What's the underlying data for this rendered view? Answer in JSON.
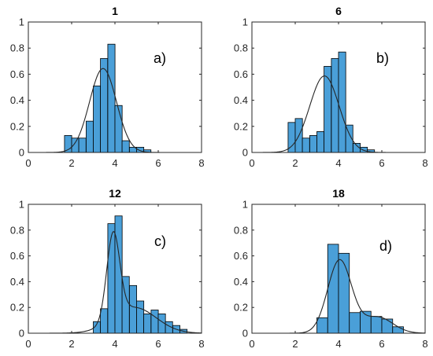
{
  "chart_data": [
    {
      "type": "bar",
      "title": "1",
      "annotation": "a)",
      "bin_width": 0.3333,
      "bin_starts": [
        1.67,
        2.0,
        2.33,
        2.67,
        3.0,
        3.33,
        3.67,
        4.0,
        4.33,
        4.67,
        5.0,
        5.33
      ],
      "values": [
        0.13,
        0.11,
        0.11,
        0.24,
        0.51,
        0.72,
        0.83,
        0.36,
        0.09,
        0.04,
        0.04,
        0.02
      ],
      "fit": {
        "type": "normal-sum",
        "components": [
          {
            "w": 1.0,
            "mu": 3.45,
            "sigma": 0.62
          }
        ]
      },
      "xlim": [
        0,
        8
      ],
      "ylim": [
        0,
        1
      ],
      "xticks": [
        "0",
        "2",
        "4",
        "6",
        "8"
      ],
      "yticks": [
        "0",
        "0.2",
        "0.4",
        "0.6",
        "0.8",
        "1"
      ],
      "bar_color": "#4a9fd8"
    },
    {
      "type": "bar",
      "title": "6",
      "annotation": "b)",
      "bin_width": 0.3333,
      "bin_starts": [
        1.67,
        2.0,
        2.33,
        2.67,
        3.0,
        3.33,
        3.67,
        4.0,
        4.33,
        4.67,
        5.0,
        5.33
      ],
      "values": [
        0.23,
        0.26,
        0.11,
        0.13,
        0.16,
        0.66,
        0.72,
        0.77,
        0.21,
        0.07,
        0.04,
        0.02
      ],
      "fit": {
        "type": "normal-sum",
        "components": [
          {
            "w": 1.0,
            "mu": 3.35,
            "sigma": 0.68
          }
        ]
      },
      "xlim": [
        0,
        8
      ],
      "ylim": [
        0,
        1
      ],
      "xticks": [
        "0",
        "2",
        "4",
        "6",
        "8"
      ],
      "yticks": [
        "0",
        "0.2",
        "0.4",
        "0.6",
        "0.8",
        "1"
      ],
      "bar_color": "#4a9fd8"
    },
    {
      "type": "bar",
      "title": "12",
      "annotation": "c)",
      "bin_width": 0.3333,
      "bin_starts": [
        3.0,
        3.33,
        3.67,
        4.0,
        4.33,
        4.67,
        5.0,
        5.33,
        5.67,
        6.0,
        6.33,
        6.67,
        7.0
      ],
      "values": [
        0.09,
        0.19,
        0.85,
        0.91,
        0.44,
        0.37,
        0.25,
        0.15,
        0.18,
        0.15,
        0.09,
        0.06,
        0.03
      ],
      "fit": {
        "type": "normal-sum",
        "components": [
          {
            "w": 0.5,
            "mu": 3.92,
            "sigma": 0.3
          },
          {
            "w": 0.5,
            "mu": 4.9,
            "sigma": 1.0
          }
        ]
      },
      "xlim": [
        0,
        8
      ],
      "ylim": [
        0,
        1
      ],
      "xticks": [
        "0",
        "2",
        "4",
        "6",
        "8"
      ],
      "yticks": [
        "0",
        "0.2",
        "0.4",
        "0.6",
        "0.8",
        "1"
      ],
      "bar_color": "#4a9fd8"
    },
    {
      "type": "bar",
      "title": "18",
      "annotation": "d)",
      "bin_width": 0.5,
      "bin_starts": [
        3.0,
        3.5,
        4.0,
        4.5,
        5.0,
        5.5,
        6.0,
        6.5
      ],
      "values": [
        0.12,
        0.69,
        0.62,
        0.16,
        0.17,
        0.13,
        0.11,
        0.05
      ],
      "fit": {
        "type": "normal-sum",
        "components": [
          {
            "w": 0.78,
            "mu": 4.05,
            "sigma": 0.55
          },
          {
            "w": 0.22,
            "mu": 5.8,
            "sigma": 0.7
          }
        ]
      },
      "xlim": [
        0,
        8
      ],
      "ylim": [
        0,
        1
      ],
      "xticks": [
        "0",
        "2",
        "4",
        "6",
        "8"
      ],
      "yticks": [
        "0",
        "0.2",
        "0.4",
        "0.6",
        "0.8",
        "1"
      ],
      "bar_color": "#4a9fd8"
    }
  ]
}
